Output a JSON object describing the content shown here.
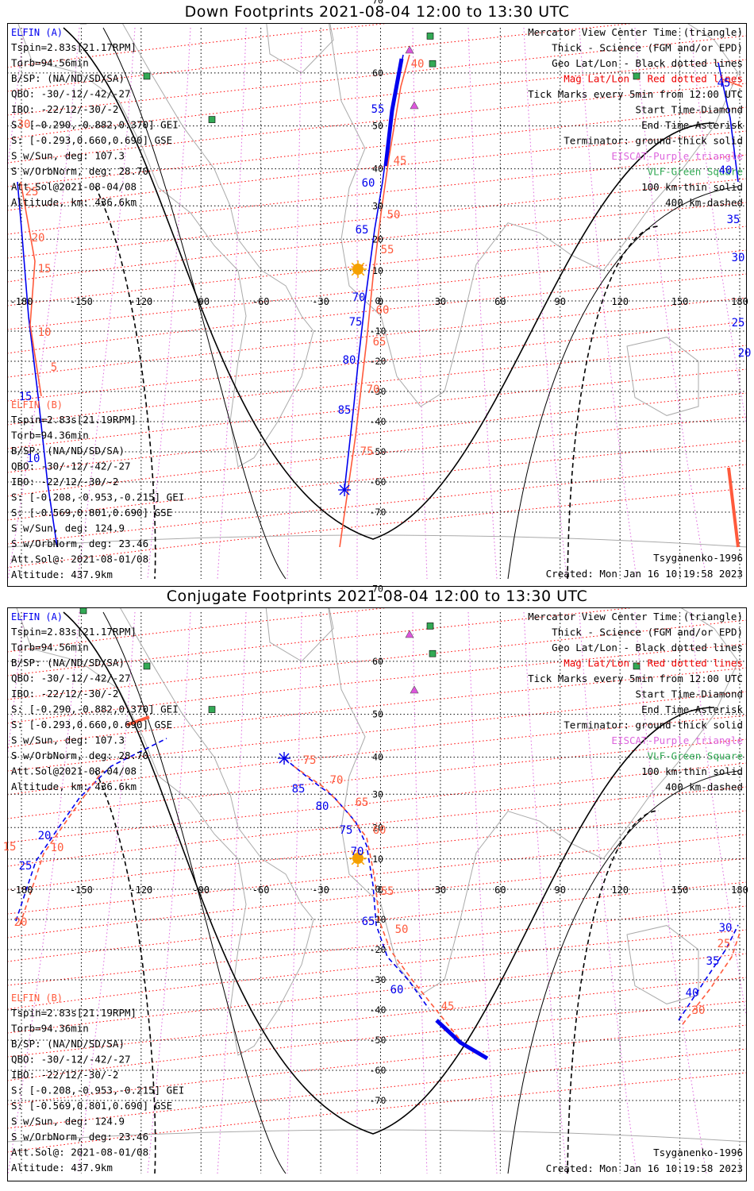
{
  "panels": [
    {
      "title": "Down Footprints 2021-08-04 12:00 to 13:30 UTC",
      "elfin_a": {
        "name": "ELFIN (A)",
        "lines": [
          "Tspin=2.83s[21.17RPM]",
          "Torb=94.56min",
          "B/SP: (NA/ND/SD/SA)",
          "QBO: -30/-12/-42/-27",
          "IBO: -22/12/-30/-2",
          "S: [-0.290,-0.882,0.370] GEI",
          "S: [-0.293,0.660,0.690] GSE",
          "S w/Sun, deg: 107.3",
          "S w/OrbNorm, deg: 28.70",
          "Att.Sol@2021-08-04/08",
          "Altitude, km: 436.6km"
        ]
      },
      "elfin_b": {
        "name": "ELFIN (B)",
        "lines": [
          "Tspin=2.83s[21.19RPM]",
          "Torb=94.36min",
          "B/SP: (NA/ND/SD/SA)",
          "QBO: -30/-12/-42/-27",
          "IBO: -22/12/-30/-2",
          "S: [-0.208,-0.953,-0.215] GEI",
          "S: [-0.569,0.801,0.690] GSE",
          "S w/Sun, deg: 124.9",
          "S w/OrbNorm, deg: 23.46",
          "Att.Sol@: 2021-08-01/08",
          "Altitude: 437.9km"
        ]
      },
      "legend": [
        "Mercator View Center Time (triangle)",
        "Thick - Science (FGM and/or EPD)",
        "Geo Lat/Lon - Black dotted lines",
        "Mag Lat/Lon - Red dotted lines",
        "Tick Marks every 5min from 12:00 UTC",
        "Start Time-Diamond",
        "End Time-Asterisk",
        "Terminator: ground-thick solid",
        "EISCAT-Purple triangle",
        "VLF-Green Square",
        "100 km-thin solid",
        "400 km-dashed"
      ],
      "model": "Tsyganenko-1996",
      "created": "Created: Mon Jan 16 10:19:58 2023",
      "lon_ticks": [
        "-180",
        "-150",
        "-120",
        "-90",
        "-60",
        "-30",
        "0",
        "30",
        "60",
        "90",
        "120",
        "150",
        "180"
      ],
      "lat_ticks": [
        "70",
        "60",
        "50",
        "40",
        "30",
        "20",
        "10",
        "0",
        "-10",
        "-20",
        "-30",
        "-40",
        "-50",
        "-60",
        "-70"
      ],
      "blue_labels": [
        "55",
        "60",
        "65",
        "70",
        "75",
        "80",
        "85",
        "15",
        "10",
        "45",
        "40",
        "35",
        "30",
        "25",
        "20"
      ],
      "red_labels": [
        "40",
        "45",
        "50",
        "55",
        "60",
        "65",
        "70",
        "75",
        "30",
        "25",
        "20",
        "15",
        "10",
        "5"
      ]
    },
    {
      "title": "Conjugate Footprints 2021-08-04 12:00 to 13:30 UTC",
      "blue_labels": [
        "85",
        "80",
        "75",
        "70",
        "65",
        "60",
        "20",
        "25",
        "30",
        "35",
        "40"
      ],
      "red_labels": [
        "75",
        "70",
        "65",
        "60",
        "55",
        "50",
        "45",
        "10",
        "15",
        "20",
        "25",
        "30"
      ]
    }
  ],
  "colors": {
    "elfin_a": "#0000ee",
    "elfin_b": "#ff5a3c",
    "geo_grid": "#000000",
    "mag_grid": "#ff0000",
    "eiscat": "#dd55dd",
    "vlf": "#33aa55",
    "legend_mag": "#ee0000",
    "legend_eiscat": "#dd66dd",
    "legend_vlf": "#33aa55"
  },
  "icons": [
    "sun-icon",
    "eiscat-triangle-icon",
    "vlf-square-icon",
    "start-diamond-icon",
    "end-asterisk-icon"
  ]
}
